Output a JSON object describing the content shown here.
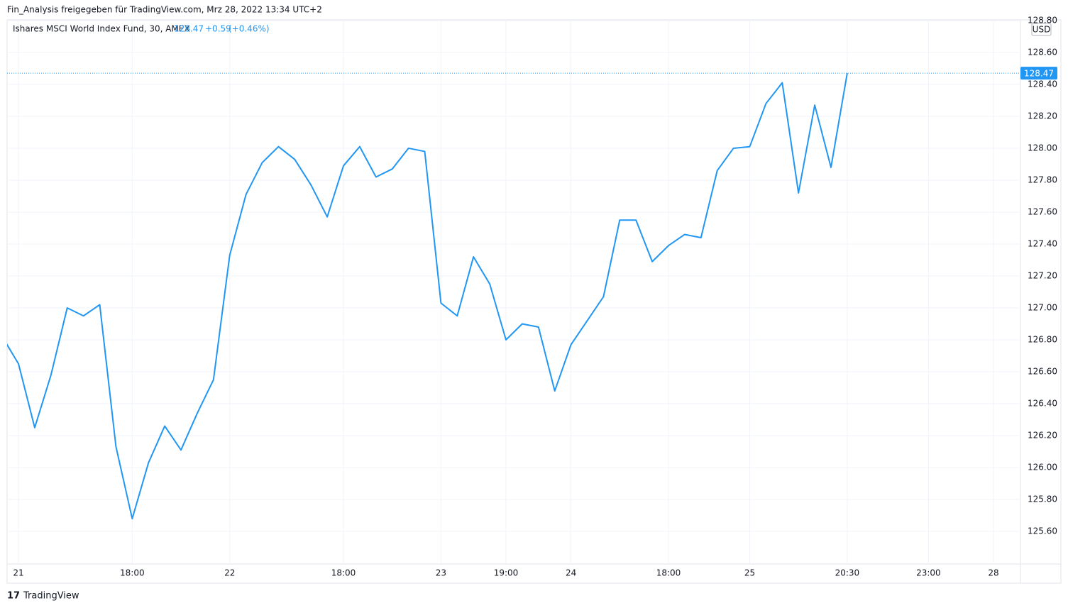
{
  "chart_data": {
    "type": "line",
    "header": "Fin_Analysis freigegeben für TradingView.com, Mrz 28, 2022 13:34 UTC+2",
    "symbol": "Ishares MSCI World Index Fund, 30, AMEX",
    "last_label": "128.47",
    "change": "+0.59",
    "change_pct": "(+0.46%)",
    "currency": "USD",
    "footer": "TradingView",
    "x": [
      0,
      1,
      2,
      3,
      4,
      5,
      6,
      7,
      8,
      9,
      10,
      11,
      12,
      13,
      14,
      15,
      16,
      17,
      18,
      19,
      20,
      21,
      22,
      23,
      24,
      25,
      26,
      27,
      28,
      29,
      30,
      31,
      32,
      33,
      34,
      35,
      36,
      37,
      38,
      39,
      40,
      41,
      42,
      43,
      44,
      45,
      46,
      47,
      48,
      49,
      50,
      51,
      52
    ],
    "series": [
      {
        "name": "Ishares MSCI World Index Fund",
        "color": "#2196f3",
        "values": [
          126.82,
          126.65,
          126.25,
          126.58,
          127.0,
          126.95,
          127.02,
          126.13,
          125.68,
          126.03,
          126.26,
          126.11,
          126.34,
          126.55,
          127.33,
          127.71,
          127.91,
          128.01,
          127.93,
          127.77,
          127.57,
          127.89,
          128.01,
          127.82,
          127.87,
          128.0,
          127.98,
          127.03,
          126.95,
          127.32,
          127.15,
          126.8,
          126.9,
          126.88,
          126.48,
          126.77,
          126.92,
          127.07,
          127.55,
          127.55,
          127.29,
          127.39,
          127.46,
          127.44,
          127.86,
          128.0,
          128.01,
          128.28,
          128.41,
          127.72,
          128.27,
          127.88,
          128.47
        ]
      }
    ],
    "xlim": [
      0.3,
      62.66
    ],
    "xticks": [
      {
        "value": 1,
        "label": "21"
      },
      {
        "value": 8,
        "label": "18:00"
      },
      {
        "value": 14,
        "label": "22"
      },
      {
        "value": 21,
        "label": "18:00"
      },
      {
        "value": 27,
        "label": "23"
      },
      {
        "value": 31,
        "label": "19:00"
      },
      {
        "value": 35,
        "label": "24"
      },
      {
        "value": 41,
        "label": "18:00"
      },
      {
        "value": 46,
        "label": "25"
      },
      {
        "value": 52,
        "label": "20:30"
      },
      {
        "value": 57,
        "label": "23:00"
      },
      {
        "value": 61,
        "label": "28"
      }
    ],
    "ylim": [
      125.396,
      128.804
    ],
    "yticks": [
      {
        "value": 125.6,
        "label": "125.60"
      },
      {
        "value": 125.8,
        "label": "125.80"
      },
      {
        "value": 126,
        "label": "126.00"
      },
      {
        "value": 126.2,
        "label": "126.20"
      },
      {
        "value": 126.4,
        "label": "126.40"
      },
      {
        "value": 126.6,
        "label": "126.60"
      },
      {
        "value": 126.8,
        "label": "126.80"
      },
      {
        "value": 127,
        "label": "127.00"
      },
      {
        "value": 127.2,
        "label": "127.20"
      },
      {
        "value": 127.4,
        "label": "127.40"
      },
      {
        "value": 127.6,
        "label": "127.60"
      },
      {
        "value": 127.8,
        "label": "127.80"
      },
      {
        "value": 128,
        "label": "128.00"
      },
      {
        "value": 128.2,
        "label": "128.20"
      },
      {
        "value": 128.4,
        "label": "128.40"
      },
      {
        "value": 128.6,
        "label": "128.60"
      },
      {
        "value": 128.8,
        "label": "128.80"
      }
    ],
    "grid": true
  }
}
